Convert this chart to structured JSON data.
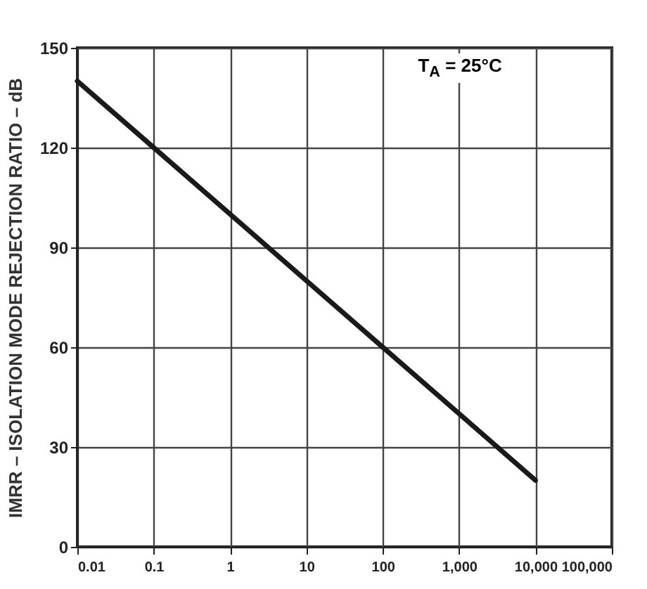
{
  "chart_data": {
    "type": "line",
    "ylabel": "IMRR – ISOLATION MODE REJECTION RATIO – dB",
    "annotations": [
      "T$_{A}$ = 25°C"
    ],
    "x": [
      0.01,
      0.1,
      1,
      10,
      100,
      1000,
      10000
    ],
    "series": [
      {
        "color": "#1a1a1a",
        "values": [
          140,
          120,
          100,
          80,
          60,
          40,
          20
        ]
      }
    ],
    "xlim": [
      0.01,
      100000
    ],
    "xticks": [
      0.01,
      0.1,
      1,
      10,
      100,
      {
        "value": 1000,
        "label": "1,000"
      },
      {
        "value": 10000,
        "label": "10,000"
      },
      {
        "value": 100000,
        "label": "100,000"
      }
    ],
    "ylim": [
      0,
      150
    ],
    "yticks": [
      0,
      30,
      60,
      90,
      120,
      150
    ],
    "log": "x",
    "grid": true,
    "marker": "none",
    "line_style": "solid"
  }
}
